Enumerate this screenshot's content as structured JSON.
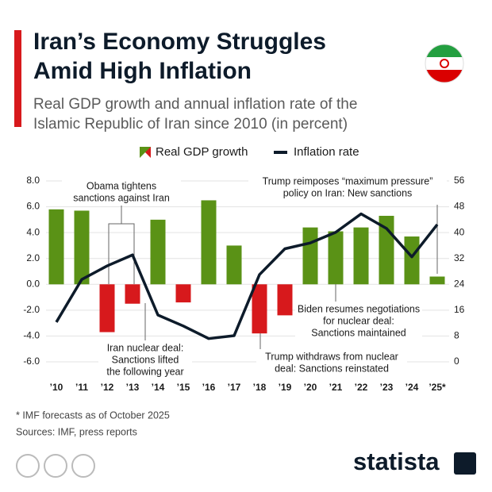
{
  "title_lines": [
    "Iran’s Economy Struggles",
    "Amid High Inflation"
  ],
  "subtitle_lines": [
    "Real GDP growth and annual inflation rate of the",
    "Islamic Republic of Iran since 2010 (in percent)"
  ],
  "chart_data": {
    "type": "bar-line",
    "categories": [
      "’10",
      "’11",
      "’12",
      "’13",
      "’14",
      "’15",
      "’16",
      "’17",
      "’18",
      "’19",
      "’20",
      "’21",
      "’22",
      "’23",
      "’24",
      "’25*"
    ],
    "series": [
      {
        "name": "Real GDP growth",
        "color": "#5a9216",
        "negative_color": "#d7191c",
        "values": [
          5.8,
          5.7,
          -3.7,
          -1.5,
          5.0,
          -1.4,
          6.5,
          3.0,
          -3.8,
          -2.4,
          4.4,
          4.1,
          4.4,
          5.3,
          3.7,
          0.6
        ]
      },
      {
        "name": "Inflation rate",
        "color": "#0d1b2a",
        "axis": "y2",
        "values": [
          12.3,
          25.5,
          29.7,
          33.1,
          14.5,
          11.1,
          7.2,
          8.1,
          27,
          35,
          36.8,
          40.1,
          45.8,
          41.3,
          32.5,
          42.5
        ]
      }
    ],
    "ylim": [
      -6,
      8
    ],
    "yticks": [
      {
        "value": -6,
        "label": "-6.0"
      },
      {
        "value": -4,
        "label": "-4.0"
      },
      {
        "value": -2,
        "label": "-2.0"
      },
      {
        "value": 0,
        "label": "0.0"
      },
      {
        "value": 2,
        "label": "2.0"
      },
      {
        "value": 4,
        "label": "4.0"
      },
      {
        "value": 6,
        "label": "6.0"
      },
      {
        "value": 8,
        "label": "8.0"
      }
    ],
    "y2lim": [
      0,
      56
    ],
    "y2ticks": [
      0,
      8,
      16,
      24,
      32,
      40,
      48,
      56
    ],
    "grid": true,
    "annotations": [
      {
        "lines": [
          "Obama tightens",
          "sanctions against Iran"
        ]
      },
      {
        "lines": [
          "Iran nuclear deal:",
          "Sanctions lifted",
          "the following year"
        ]
      },
      {
        "lines": [
          "Trump reimposes “maximum pressure”",
          "policy on Iran: New sanctions"
        ]
      },
      {
        "lines": [
          "Biden resumes negotiations",
          "for nuclear deal:",
          "Sanctions maintained"
        ]
      },
      {
        "lines": [
          "Trump withdraws from nuclear",
          "deal: Sanctions reinstated"
        ]
      }
    ]
  },
  "footnote": "* IMF forecasts as of October 2025",
  "sources": "Sources: IMF, press reports",
  "brand": "statista"
}
